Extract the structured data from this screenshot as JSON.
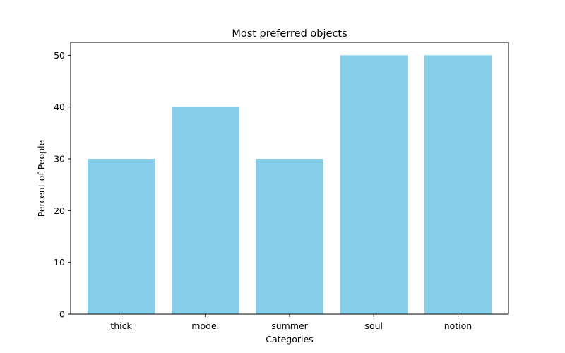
{
  "chart_data": {
    "type": "bar",
    "title": "Most preferred objects",
    "xlabel": "Categories",
    "ylabel": "Percent of People",
    "categories": [
      "thick",
      "model",
      "summer",
      "soul",
      "notion"
    ],
    "values": [
      30,
      40,
      30,
      50,
      50
    ],
    "ylim": [
      0,
      52.5
    ],
    "yticks": [
      0,
      10,
      20,
      30,
      40,
      50
    ],
    "bar_color": "#87CEEB",
    "grid": false,
    "legend": false
  }
}
